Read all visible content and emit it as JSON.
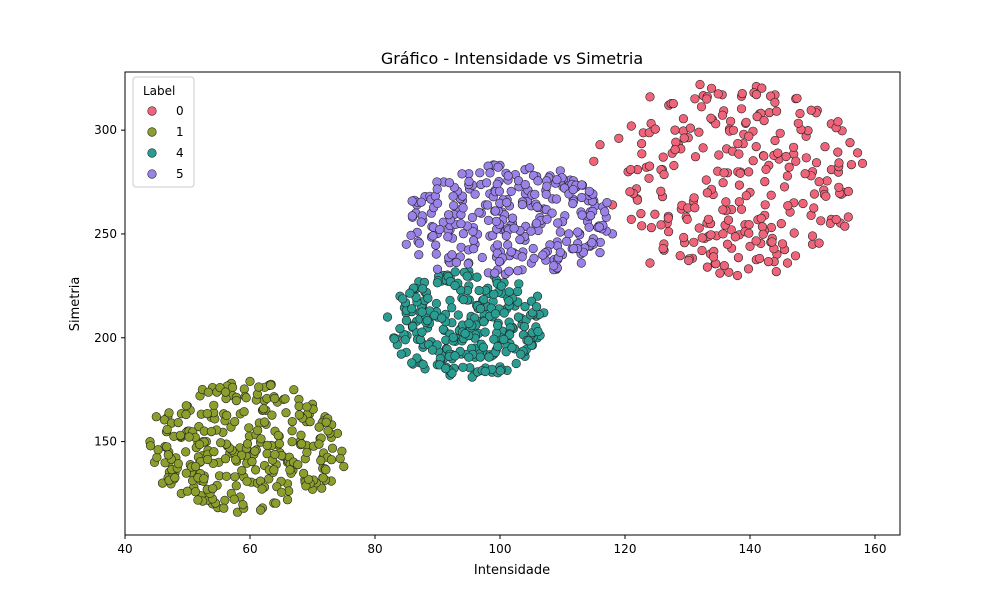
{
  "chart_data": {
    "type": "scatter",
    "title": "Gráfico - Intensidade vs Simetria",
    "xlabel": "Intensidade",
    "ylabel": "Simetria",
    "xlim": [
      40,
      164
    ],
    "ylim": [
      105,
      328
    ],
    "xticks": [
      40,
      60,
      80,
      100,
      120,
      140,
      160
    ],
    "yticks": [
      150,
      200,
      250,
      300
    ],
    "grid": false,
    "legend": {
      "title": "Label",
      "placement": "top-left"
    },
    "series": [
      {
        "name": "0",
        "color": "#f0647a",
        "cluster": {
          "x_range": [
            120,
            158
          ],
          "y_range": [
            230,
            323
          ],
          "count": 280
        },
        "points": [
          [
            124,
            316
          ],
          [
            132,
            322
          ],
          [
            141,
            321
          ],
          [
            144,
            317
          ],
          [
            148,
            308
          ],
          [
            153,
            303
          ],
          [
            156,
            294
          ],
          [
            158,
            284
          ],
          [
            155,
            270
          ],
          [
            153,
            257
          ],
          [
            150,
            245
          ],
          [
            146,
            236
          ],
          [
            138,
            230
          ],
          [
            131,
            246
          ],
          [
            124,
            236
          ],
          [
            121,
            257
          ],
          [
            118,
            264
          ],
          [
            115,
            285
          ],
          [
            116,
            293
          ],
          [
            121,
            302
          ],
          [
            128,
            300
          ],
          [
            135,
            288
          ],
          [
            140,
            270
          ],
          [
            145,
            255
          ],
          [
            150,
            280
          ],
          [
            126,
            268
          ],
          [
            133,
            276
          ],
          [
            139,
            298
          ],
          [
            143,
            283
          ],
          [
            137,
            252
          ],
          [
            129,
            262
          ],
          [
            147,
            265
          ],
          [
            152,
            292
          ],
          [
            122,
            281
          ],
          [
            134,
            305
          ],
          [
            140,
            244
          ],
          [
            127,
            312
          ],
          [
            150,
            249
          ],
          [
            119,
            296
          ],
          [
            144,
            295
          ]
        ]
      },
      {
        "name": "1",
        "color": "#8c9e2b",
        "cluster": {
          "x_range": [
            44,
            75
          ],
          "y_range": [
            116,
            179
          ],
          "count": 310
        },
        "points": [
          [
            44,
            150
          ],
          [
            45,
            162
          ],
          [
            47,
            140
          ],
          [
            46,
            130
          ],
          [
            49,
            125
          ],
          [
            50,
            167
          ],
          [
            52,
            172
          ],
          [
            54,
            176
          ],
          [
            57,
            178
          ],
          [
            60,
            179
          ],
          [
            63,
            177
          ],
          [
            67,
            175
          ],
          [
            70,
            168
          ],
          [
            72,
            162
          ],
          [
            73,
            152
          ],
          [
            75,
            138
          ],
          [
            73,
            131
          ],
          [
            70,
            127
          ],
          [
            66,
            122
          ],
          [
            62,
            118
          ],
          [
            58,
            116
          ],
          [
            54,
            120
          ],
          [
            51,
            128
          ],
          [
            48,
            135
          ],
          [
            53,
            150
          ],
          [
            56,
            160
          ],
          [
            60,
            145
          ],
          [
            64,
            155
          ],
          [
            59,
            133
          ],
          [
            66,
            140
          ],
          [
            55,
            140
          ],
          [
            62,
            165
          ],
          [
            68,
            150
          ],
          [
            50,
            155
          ],
          [
            57,
            125
          ],
          [
            63,
            132
          ],
          [
            47,
            145
          ],
          [
            69,
            160
          ],
          [
            52,
            140
          ],
          [
            61,
            170
          ]
        ]
      },
      {
        "name": "4",
        "color": "#2a9d92",
        "cluster": {
          "x_range": [
            82,
            107
          ],
          "y_range": [
            180,
            232
          ],
          "count": 290
        },
        "points": [
          [
            82,
            210
          ],
          [
            84,
            220
          ],
          [
            87,
            227
          ],
          [
            91,
            230
          ],
          [
            95,
            232
          ],
          [
            99,
            230
          ],
          [
            103,
            226
          ],
          [
            106,
            220
          ],
          [
            107,
            212
          ],
          [
            106,
            200
          ],
          [
            104,
            191
          ],
          [
            100,
            186
          ],
          [
            96,
            183
          ],
          [
            92,
            182
          ],
          [
            88,
            185
          ],
          [
            85,
            193
          ],
          [
            83,
            200
          ],
          [
            90,
            210
          ],
          [
            94,
            200
          ],
          [
            98,
            215
          ],
          [
            102,
            205
          ],
          [
            88,
            222
          ],
          [
            96,
            195
          ],
          [
            100,
            222
          ],
          [
            92,
            218
          ],
          [
            86,
            205
          ],
          [
            104,
            215
          ],
          [
            97,
            208
          ],
          [
            91,
            190
          ],
          [
            99,
            192
          ],
          [
            89,
            198
          ],
          [
            95,
            225
          ]
        ]
      },
      {
        "name": "5",
        "color": "#9b82e8",
        "cluster": {
          "x_range": [
            85,
            118
          ],
          "y_range": [
            230,
            284
          ],
          "count": 300
        },
        "points": [
          [
            85,
            245
          ],
          [
            86,
            258
          ],
          [
            88,
            268
          ],
          [
            91,
            275
          ],
          [
            95,
            279
          ],
          [
            100,
            283
          ],
          [
            104,
            281
          ],
          [
            108,
            278
          ],
          [
            112,
            274
          ],
          [
            115,
            266
          ],
          [
            117,
            258
          ],
          [
            118,
            250
          ],
          [
            116,
            241
          ],
          [
            113,
            236
          ],
          [
            109,
            233
          ],
          [
            105,
            236
          ],
          [
            100,
            240
          ],
          [
            95,
            236
          ],
          [
            90,
            233
          ],
          [
            87,
            240
          ],
          [
            92,
            252
          ],
          [
            97,
            260
          ],
          [
            102,
            255
          ],
          [
            107,
            262
          ],
          [
            111,
            250
          ],
          [
            94,
            266
          ],
          [
            99,
            270
          ],
          [
            104,
            247
          ],
          [
            89,
            260
          ],
          [
            110,
            240
          ],
          [
            96,
            245
          ],
          [
            114,
            256
          ]
        ]
      }
    ]
  }
}
